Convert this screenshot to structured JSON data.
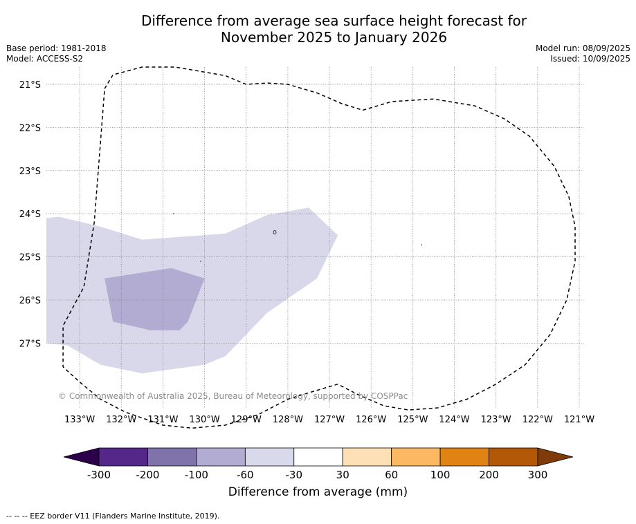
{
  "title_line1": "Difference from average sea surface height forecast for",
  "title_line2": "November 2025 to January 2026",
  "base_period": "Base period: 1981-2018",
  "model": "Model: ACCESS-S2",
  "model_run": "Model run: 08/09/2025",
  "issued": "Issued: 10/09/2025",
  "copyright": "© Commonwealth of Australia 2025, Bureau of Meteorology, supported by COSPPac",
  "map": {
    "lon_range": [
      -133.8,
      -120.9
    ],
    "lat_range": [
      -28.5,
      -20.6
    ],
    "lat_ticks": [
      {
        "value": -21,
        "label": "21°S"
      },
      {
        "value": -22,
        "label": "22°S"
      },
      {
        "value": -23,
        "label": "23°S"
      },
      {
        "value": -24,
        "label": "24°S"
      },
      {
        "value": -25,
        "label": "25°S"
      },
      {
        "value": -26,
        "label": "26°S"
      },
      {
        "value": -27,
        "label": "27°S"
      }
    ],
    "lon_ticks": [
      {
        "value": -133,
        "label": "133°W"
      },
      {
        "value": -132,
        "label": "132°W"
      },
      {
        "value": -131,
        "label": "131°W"
      },
      {
        "value": -130,
        "label": "130°W"
      },
      {
        "value": -129,
        "label": "129°W"
      },
      {
        "value": -128,
        "label": "128°W"
      },
      {
        "value": -127,
        "label": "127°W"
      },
      {
        "value": -126,
        "label": "126°W"
      },
      {
        "value": -125,
        "label": "125°W"
      },
      {
        "value": -124,
        "label": "124°W"
      },
      {
        "value": -123,
        "label": "123°W"
      },
      {
        "value": -122,
        "label": "122°W"
      },
      {
        "value": -121,
        "label": "121°W"
      }
    ],
    "region_60_30_color": "#d8d8ea",
    "region_100_60_color": "#b2abd2",
    "region_60_30": [
      [
        -133.8,
        -24.1
      ],
      [
        -133.5,
        -24.07
      ],
      [
        -132.5,
        -24.3
      ],
      [
        -131.5,
        -24.6
      ],
      [
        -129.5,
        -24.46
      ],
      [
        -128.5,
        -24.03
      ],
      [
        -127.5,
        -23.86
      ],
      [
        -126.8,
        -24.5
      ],
      [
        -127.3,
        -25.5
      ],
      [
        -128.5,
        -26.3
      ],
      [
        -129.5,
        -27.3
      ],
      [
        -130.0,
        -27.5
      ],
      [
        -131.5,
        -27.7
      ],
      [
        -132.5,
        -27.5
      ],
      [
        -133.3,
        -27.05
      ],
      [
        -133.8,
        -27.0
      ]
    ],
    "region_100_60": [
      [
        -132.4,
        -25.5
      ],
      [
        -130.8,
        -25.26
      ],
      [
        -130.0,
        -25.5
      ],
      [
        -130.4,
        -26.5
      ],
      [
        -130.6,
        -26.7
      ],
      [
        -131.3,
        -26.7
      ],
      [
        -132.2,
        -26.5
      ]
    ],
    "eez_border": [
      [
        -132.4,
        -21.1
      ],
      [
        -132.2,
        -20.78
      ],
      [
        -131.5,
        -20.6
      ],
      [
        -130.7,
        -20.6
      ],
      [
        -129.5,
        -20.8
      ],
      [
        -129.0,
        -21.0
      ],
      [
        -128.5,
        -20.97
      ],
      [
        -128.0,
        -21.0
      ],
      [
        -127.3,
        -21.2
      ],
      [
        -126.7,
        -21.45
      ],
      [
        -126.2,
        -21.6
      ],
      [
        -125.5,
        -21.4
      ],
      [
        -124.5,
        -21.34
      ],
      [
        -123.5,
        -21.5
      ],
      [
        -122.8,
        -21.8
      ],
      [
        -122.2,
        -22.2
      ],
      [
        -121.6,
        -22.9
      ],
      [
        -121.25,
        -23.6
      ],
      [
        -121.1,
        -24.3
      ],
      [
        -121.1,
        -25.1
      ],
      [
        -121.3,
        -26.0
      ],
      [
        -121.7,
        -26.8
      ],
      [
        -122.3,
        -27.5
      ],
      [
        -123.0,
        -27.95
      ],
      [
        -123.7,
        -28.3
      ],
      [
        -124.4,
        -28.5
      ],
      [
        -125.1,
        -28.55
      ],
      [
        -125.7,
        -28.45
      ],
      [
        -126.3,
        -28.2
      ],
      [
        -126.8,
        -27.95
      ],
      [
        -127.5,
        -28.15
      ],
      [
        -128.0,
        -28.3
      ],
      [
        -128.7,
        -28.65
      ],
      [
        -129.5,
        -28.9
      ],
      [
        -130.3,
        -28.97
      ],
      [
        -131.0,
        -28.9
      ],
      [
        -131.9,
        -28.6
      ],
      [
        -132.5,
        -28.3
      ],
      [
        -133.0,
        -27.9
      ],
      [
        -133.4,
        -27.55
      ],
      [
        -133.4,
        -26.6
      ],
      [
        -132.9,
        -25.7
      ],
      [
        -132.65,
        -24.2
      ],
      [
        -132.4,
        -21.1
      ]
    ]
  },
  "colorbar": {
    "bins": [
      {
        "color": "#542788"
      },
      {
        "color": "#8073ac"
      },
      {
        "color": "#b2abd2"
      },
      {
        "color": "#d8daeb"
      },
      {
        "color": "#ffffff"
      },
      {
        "color": "#fee0b6"
      },
      {
        "color": "#fdb863"
      },
      {
        "color": "#e08214"
      },
      {
        "color": "#b35806"
      }
    ],
    "low_extend_color": "#2d004b",
    "high_extend_color": "#7f3b08",
    "tick_labels": [
      "-300",
      "-200",
      "-100",
      "-60",
      "-30",
      "30",
      "60",
      "100",
      "200",
      "300"
    ],
    "label": "Difference from average (mm)"
  },
  "footnote": "--  --  -- EEZ border V11 (Flanders Marine Institute, 2019)."
}
